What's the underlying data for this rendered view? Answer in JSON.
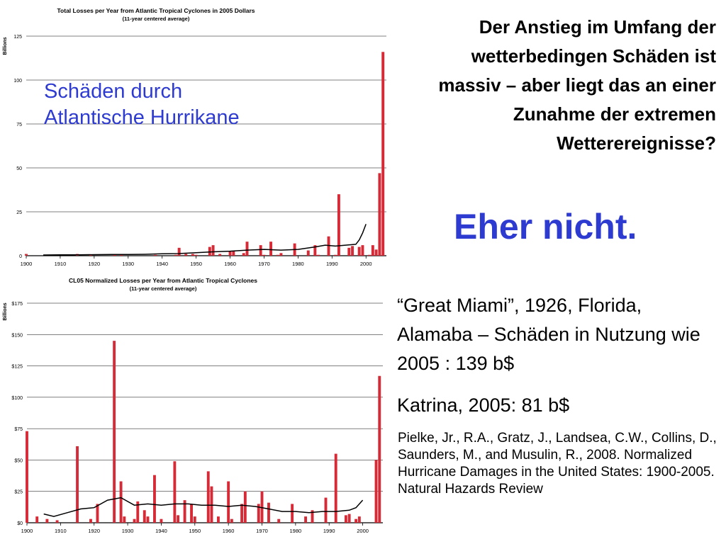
{
  "slide": {
    "overlay_label": "Schäden durch\nAtlantische Hurrikane",
    "question": "Der Anstieg im Umfang der wetterbedingen Schäden ist massiv – aber liegt das an einer Zunahme der extremen Wetterereignisse?",
    "answer": "Eher nicht.",
    "note_great_miami": "“Great Miami”, 1926, Florida, Alamaba – Schäden in Nutzung wie 2005 : 139 b$",
    "note_katrina": "Katrina, 2005: 81 b$",
    "citation": "Pielke, Jr., R.A., Gratz, J., Landsea, C.W., Collins, D., Saunders, M., and Musulin, R., 2008. Normalized Hurricane Damages in the United States: 1900-2005. Natural Hazards Review"
  },
  "colors": {
    "bar": "#d62a36",
    "line": "#000000",
    "grid": "#000000",
    "accent": "#2e3bd1"
  },
  "chart_data": [
    {
      "type": "bar",
      "title": "Total Losses per Year from Atlantic Tropical Cyclones in 2005 Dollars",
      "subtitle": "(11-year centered average)",
      "ylabel": "Billions",
      "xlabel": "",
      "ylim": [
        0,
        125
      ],
      "xlim": [
        1900,
        2006
      ],
      "yticks": [
        0,
        25,
        50,
        75,
        100,
        125
      ],
      "ytick_labels": [
        "0",
        "25",
        "50",
        "75",
        "100",
        "125"
      ],
      "xticks": [
        1900,
        1910,
        1920,
        1930,
        1940,
        1950,
        1960,
        1970,
        1980,
        1990,
        2000
      ],
      "grid": true,
      "bars": [
        {
          "x": 1900,
          "y": 1
        },
        {
          "x": 1915,
          "y": 1
        },
        {
          "x": 1919,
          "y": 0.5
        },
        {
          "x": 1926,
          "y": 1
        },
        {
          "x": 1928,
          "y": 0.5
        },
        {
          "x": 1938,
          "y": 0.5
        },
        {
          "x": 1944,
          "y": 0.5
        },
        {
          "x": 1945,
          "y": 4.5
        },
        {
          "x": 1947,
          "y": 1
        },
        {
          "x": 1949,
          "y": 1
        },
        {
          "x": 1950,
          "y": 0.5
        },
        {
          "x": 1954,
          "y": 5
        },
        {
          "x": 1955,
          "y": 6
        },
        {
          "x": 1957,
          "y": 1
        },
        {
          "x": 1960,
          "y": 2.5
        },
        {
          "x": 1961,
          "y": 2.5
        },
        {
          "x": 1964,
          "y": 1.5
        },
        {
          "x": 1965,
          "y": 8
        },
        {
          "x": 1969,
          "y": 6
        },
        {
          "x": 1970,
          "y": 0.5
        },
        {
          "x": 1972,
          "y": 8
        },
        {
          "x": 1974,
          "y": 0.5
        },
        {
          "x": 1975,
          "y": 1.5
        },
        {
          "x": 1979,
          "y": 7
        },
        {
          "x": 1983,
          "y": 3
        },
        {
          "x": 1985,
          "y": 6
        },
        {
          "x": 1986,
          "y": 0.5
        },
        {
          "x": 1989,
          "y": 11
        },
        {
          "x": 1991,
          "y": 0.5
        },
        {
          "x": 1992,
          "y": 35
        },
        {
          "x": 1995,
          "y": 4.5
        },
        {
          "x": 1996,
          "y": 5.5
        },
        {
          "x": 1998,
          "y": 5
        },
        {
          "x": 1999,
          "y": 6
        },
        {
          "x": 2001,
          "y": 0.5
        },
        {
          "x": 2002,
          "y": 6
        },
        {
          "x": 2003,
          "y": 3.5
        },
        {
          "x": 2004,
          "y": 47
        },
        {
          "x": 2005,
          "y": 116
        }
      ],
      "line": {
        "name": "11-year centered average",
        "points": [
          [
            1905,
            0.4
          ],
          [
            1910,
            0.5
          ],
          [
            1915,
            0.5
          ],
          [
            1920,
            0.6
          ],
          [
            1925,
            0.7
          ],
          [
            1930,
            0.7
          ],
          [
            1935,
            0.8
          ],
          [
            1940,
            1.1
          ],
          [
            1945,
            1.2
          ],
          [
            1950,
            1.7
          ],
          [
            1955,
            2.2
          ],
          [
            1960,
            2.6
          ],
          [
            1965,
            3.2
          ],
          [
            1970,
            3.6
          ],
          [
            1975,
            3.2
          ],
          [
            1980,
            3.6
          ],
          [
            1985,
            5
          ],
          [
            1988,
            6
          ],
          [
            1991,
            5.5
          ],
          [
            1994,
            6
          ],
          [
            1997,
            6.5
          ],
          [
            1998,
            9
          ],
          [
            1999,
            13
          ],
          [
            2000,
            18
          ]
        ]
      }
    },
    {
      "type": "bar",
      "title": "CL05 Normalized Losses per Year from Atlantic Tropical Cyclones",
      "subtitle": "(11-year centered average)",
      "ylabel": "Billions",
      "xlabel": "",
      "ylim": [
        0,
        175
      ],
      "xlim": [
        1900,
        2006
      ],
      "yticks": [
        0,
        25,
        50,
        75,
        100,
        125,
        150,
        175
      ],
      "ytick_labels": [
        "$0",
        "$25",
        "$50",
        "$75",
        "$100",
        "$125",
        "$150",
        "$175"
      ],
      "xticks": [
        1900,
        1910,
        1920,
        1930,
        1940,
        1950,
        1960,
        1970,
        1980,
        1990,
        2000
      ],
      "grid": true,
      "bars": [
        {
          "x": 1900,
          "y": 73
        },
        {
          "x": 1903,
          "y": 5
        },
        {
          "x": 1906,
          "y": 3
        },
        {
          "x": 1909,
          "y": 2
        },
        {
          "x": 1915,
          "y": 61
        },
        {
          "x": 1919,
          "y": 3
        },
        {
          "x": 1921,
          "y": 15
        },
        {
          "x": 1926,
          "y": 145
        },
        {
          "x": 1928,
          "y": 33
        },
        {
          "x": 1929,
          "y": 5
        },
        {
          "x": 1932,
          "y": 3
        },
        {
          "x": 1933,
          "y": 17
        },
        {
          "x": 1935,
          "y": 10
        },
        {
          "x": 1936,
          "y": 5
        },
        {
          "x": 1938,
          "y": 38
        },
        {
          "x": 1940,
          "y": 3
        },
        {
          "x": 1944,
          "y": 49
        },
        {
          "x": 1945,
          "y": 6
        },
        {
          "x": 1947,
          "y": 18
        },
        {
          "x": 1949,
          "y": 15
        },
        {
          "x": 1950,
          "y": 5
        },
        {
          "x": 1954,
          "y": 41
        },
        {
          "x": 1955,
          "y": 29
        },
        {
          "x": 1957,
          "y": 5
        },
        {
          "x": 1960,
          "y": 33
        },
        {
          "x": 1961,
          "y": 3
        },
        {
          "x": 1964,
          "y": 15
        },
        {
          "x": 1965,
          "y": 25
        },
        {
          "x": 1969,
          "y": 15
        },
        {
          "x": 1970,
          "y": 25
        },
        {
          "x": 1972,
          "y": 16
        },
        {
          "x": 1975,
          "y": 3
        },
        {
          "x": 1979,
          "y": 15
        },
        {
          "x": 1983,
          "y": 5
        },
        {
          "x": 1985,
          "y": 10
        },
        {
          "x": 1989,
          "y": 20
        },
        {
          "x": 1992,
          "y": 55
        },
        {
          "x": 1995,
          "y": 6
        },
        {
          "x": 1996,
          "y": 7
        },
        {
          "x": 1998,
          "y": 3
        },
        {
          "x": 1999,
          "y": 5
        },
        {
          "x": 2004,
          "y": 50
        },
        {
          "x": 2005,
          "y": 117
        }
      ],
      "line": {
        "name": "11-year centered average",
        "points": [
          [
            1905,
            7
          ],
          [
            1908,
            5
          ],
          [
            1912,
            8
          ],
          [
            1916,
            11
          ],
          [
            1920,
            12
          ],
          [
            1924,
            18
          ],
          [
            1928,
            20
          ],
          [
            1932,
            14
          ],
          [
            1936,
            15
          ],
          [
            1940,
            14
          ],
          [
            1944,
            15
          ],
          [
            1948,
            15
          ],
          [
            1952,
            14
          ],
          [
            1956,
            14
          ],
          [
            1960,
            13
          ],
          [
            1964,
            14
          ],
          [
            1968,
            13
          ],
          [
            1972,
            11
          ],
          [
            1976,
            9
          ],
          [
            1980,
            9
          ],
          [
            1984,
            8
          ],
          [
            1988,
            9
          ],
          [
            1992,
            9
          ],
          [
            1996,
            10
          ],
          [
            1998,
            12
          ],
          [
            2000,
            18
          ]
        ]
      }
    }
  ]
}
